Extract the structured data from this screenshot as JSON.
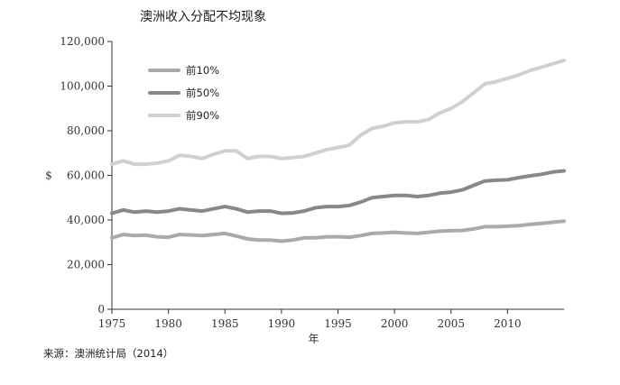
{
  "title": "澳洲收入分配不均现象",
  "source": "来源：澳洲统计局（2014）",
  "chart_data": {
    "type": "line",
    "title": "澳洲收入分配不均现象",
    "xlabel": "年",
    "ylabel": "$",
    "xlim": [
      1975,
      2015
    ],
    "ylim": [
      0,
      120000
    ],
    "x_ticks": [
      1975,
      1980,
      1985,
      1990,
      1995,
      2000,
      2005,
      2010
    ],
    "x_tick_labels": [
      "1975",
      "1980",
      "1985",
      "1990",
      "1995",
      "2000",
      "2005",
      "2010"
    ],
    "y_ticks": [
      0,
      20000,
      40000,
      60000,
      80000,
      100000,
      120000
    ],
    "y_tick_labels": [
      "0",
      "20,000",
      "40,000",
      "60,000",
      "80,000",
      "100,000",
      "120,000"
    ],
    "grid": false,
    "legend_position": "top-left",
    "series": [
      {
        "name": "前10%",
        "color": "#aaaaaa",
        "x": [
          1975,
          1976,
          1977,
          1978,
          1979,
          1980,
          1981,
          1982,
          1983,
          1984,
          1985,
          1986,
          1987,
          1988,
          1989,
          1990,
          1991,
          1992,
          1993,
          1994,
          1995,
          1996,
          1997,
          1998,
          1999,
          2000,
          2001,
          2002,
          2003,
          2004,
          2005,
          2006,
          2007,
          2008,
          2009,
          2010,
          2011,
          2012,
          2013,
          2014,
          2015
        ],
        "values": [
          32000,
          33500,
          33000,
          33200,
          32500,
          32300,
          33500,
          33300,
          33000,
          33500,
          34000,
          32800,
          31500,
          31000,
          31000,
          30500,
          31000,
          32000,
          32000,
          32500,
          32500,
          32300,
          33000,
          34000,
          34200,
          34500,
          34200,
          34000,
          34500,
          35000,
          35200,
          35300,
          36000,
          37000,
          37000,
          37200,
          37500,
          38000,
          38500,
          39000,
          39500
        ]
      },
      {
        "name": "前50%",
        "color": "#888888",
        "x": [
          1975,
          1976,
          1977,
          1978,
          1979,
          1980,
          1981,
          1982,
          1983,
          1984,
          1985,
          1986,
          1987,
          1988,
          1989,
          1990,
          1991,
          1992,
          1993,
          1994,
          1995,
          1996,
          1997,
          1998,
          1999,
          2000,
          2001,
          2002,
          2003,
          2004,
          2005,
          2006,
          2007,
          2008,
          2009,
          2010,
          2011,
          2012,
          2013,
          2014,
          2015
        ],
        "values": [
          43000,
          44500,
          43500,
          44000,
          43500,
          44000,
          45000,
          44500,
          44000,
          45000,
          46000,
          45000,
          43500,
          44000,
          44000,
          43000,
          43200,
          44000,
          45500,
          46000,
          46000,
          46500,
          48000,
          50000,
          50500,
          51000,
          51000,
          50500,
          51000,
          52000,
          52500,
          53500,
          55500,
          57500,
          57800,
          58000,
          59000,
          59800,
          60500,
          61500,
          62000
        ]
      },
      {
        "name": "前90%",
        "color": "#d0d0d0",
        "x": [
          1975,
          1976,
          1977,
          1978,
          1979,
          1980,
          1981,
          1982,
          1983,
          1984,
          1985,
          1986,
          1987,
          1988,
          1989,
          1990,
          1991,
          1992,
          1993,
          1994,
          1995,
          1996,
          1997,
          1998,
          1999,
          2000,
          2001,
          2002,
          2003,
          2004,
          2005,
          2006,
          2007,
          2008,
          2009,
          2010,
          2011,
          2012,
          2013,
          2014,
          2015
        ],
        "values": [
          65000,
          66500,
          65000,
          65000,
          65500,
          66500,
          69000,
          68500,
          67500,
          69500,
          71000,
          71000,
          67500,
          68500,
          68500,
          67500,
          68000,
          68500,
          70000,
          71500,
          72500,
          73500,
          78000,
          81000,
          82000,
          83500,
          84000,
          84000,
          85000,
          88000,
          90000,
          93000,
          97000,
          101000,
          102000,
          103500,
          105000,
          107000,
          108500,
          110000,
          111500
        ]
      }
    ]
  }
}
